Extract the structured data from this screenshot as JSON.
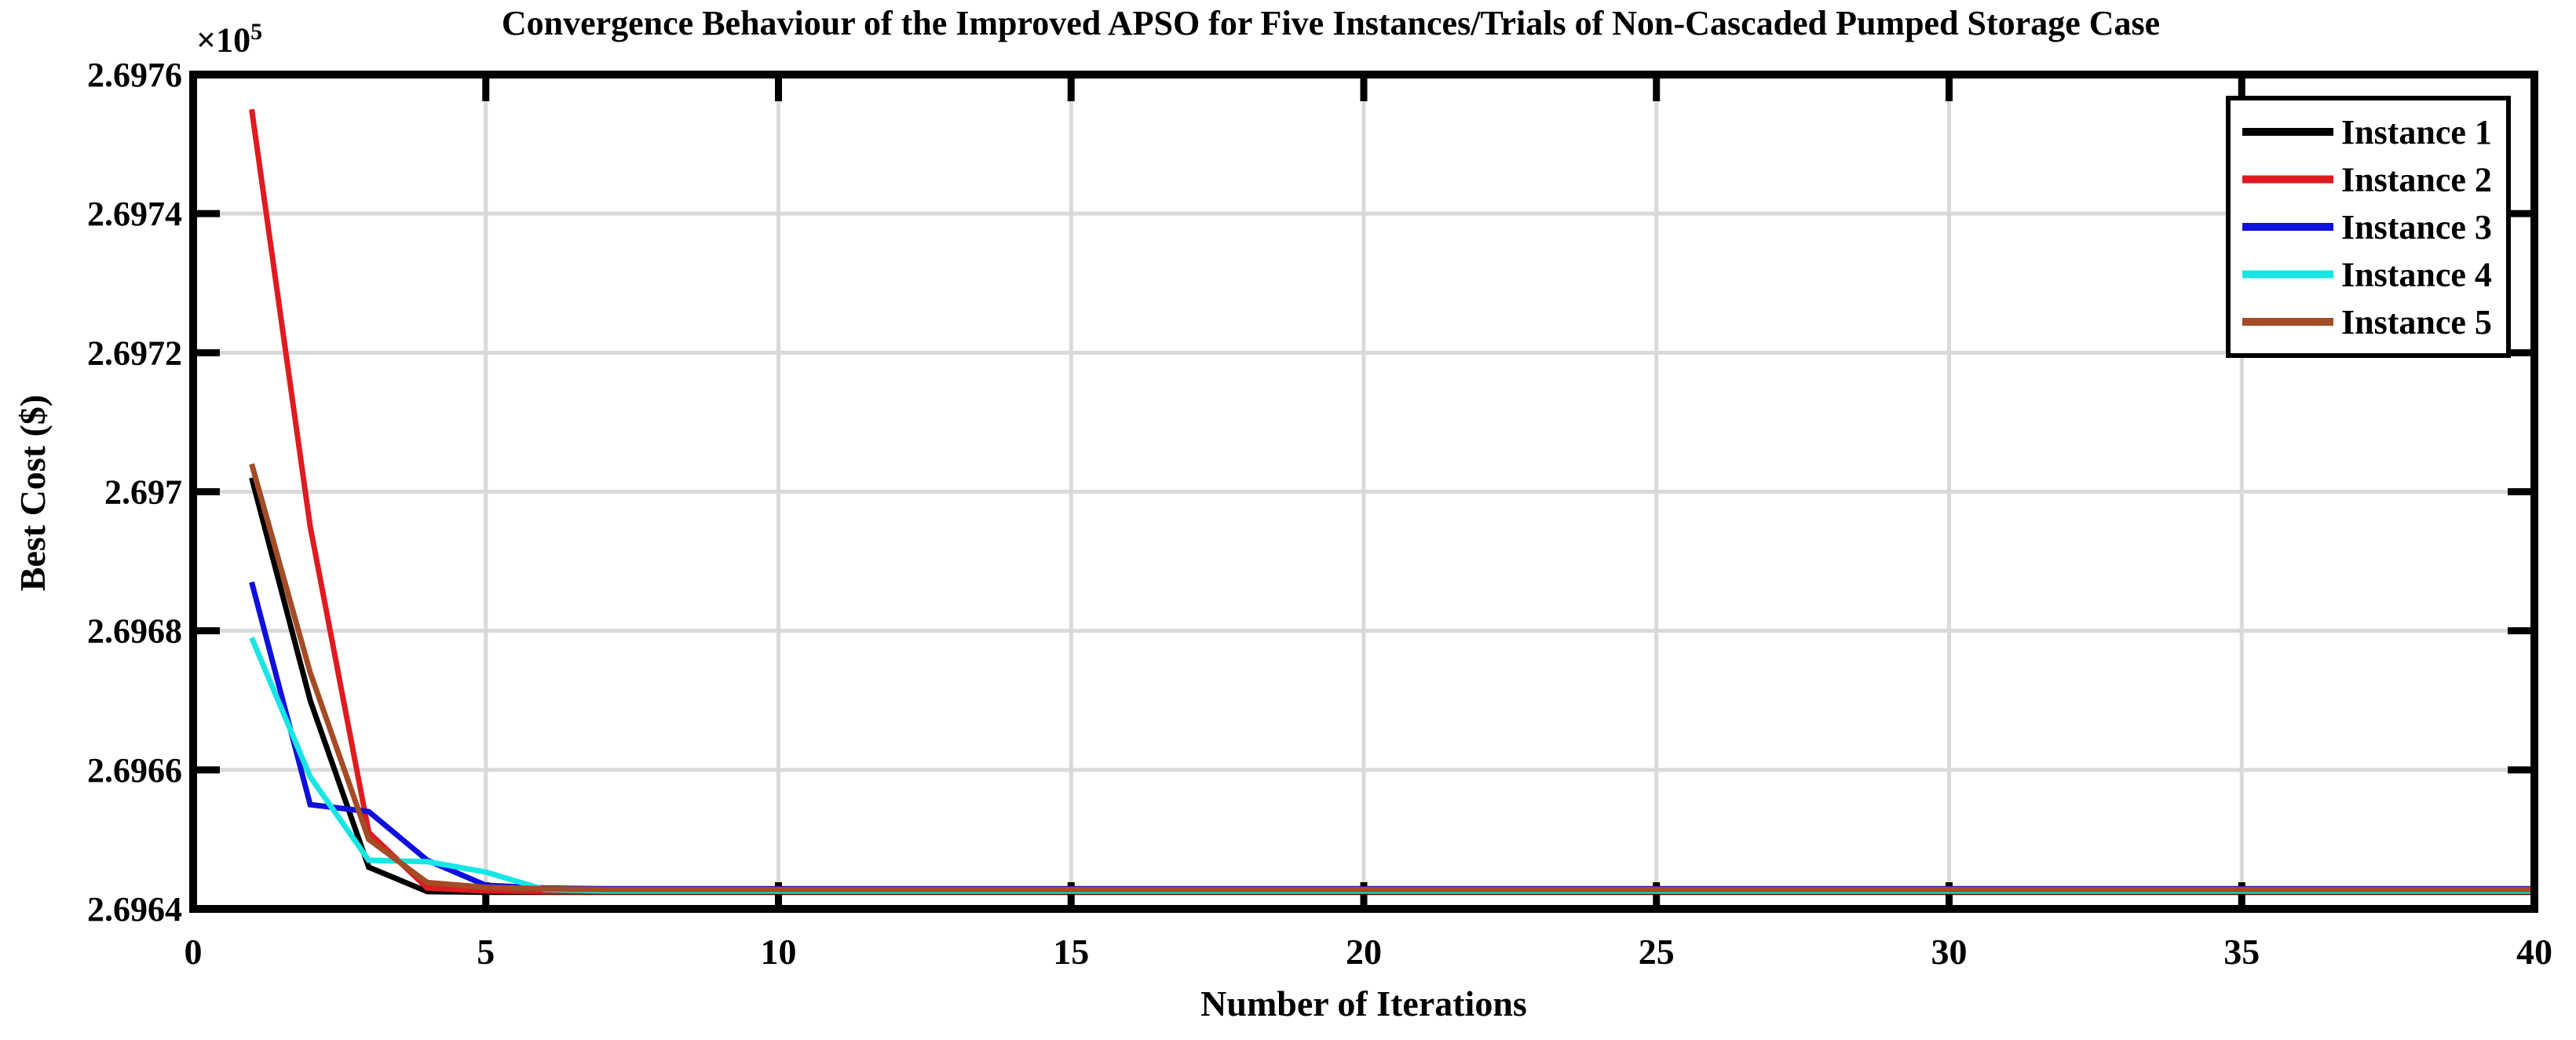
{
  "chart_data": {
    "type": "line",
    "title": "Convergence Behaviour of the Improved APSO for Five Instances/Trials of Non-Cascaded Pumped Storage Case",
    "xlabel": "Number of Iterations",
    "ylabel": "Best Cost ($)",
    "y_multiplier": {
      "base": "×10",
      "exponent": "5"
    },
    "xlim": [
      0,
      40
    ],
    "ylim": [
      269640,
      269760
    ],
    "x_start": 1,
    "grid": true,
    "legend_position": "top-right",
    "xticks": {
      "values": [
        0,
        5,
        10,
        15,
        20,
        25,
        30,
        35,
        40
      ],
      "labels": [
        "0",
        "5",
        "10",
        "15",
        "20",
        "25",
        "30",
        "35",
        "40"
      ]
    },
    "yticks": {
      "values": [
        269640,
        269660,
        269680,
        269700,
        269720,
        269740,
        269760
      ],
      "labels": [
        "2.6964",
        "2.6966",
        "2.6968",
        "2.697",
        "2.6972",
        "2.6974",
        "2.6976"
      ]
    },
    "styles": {
      "grid_color": "#d9d9d9",
      "axis_color": "#000000",
      "background": "#ffffff",
      "line_width": 7,
      "border_width": 10,
      "tick_len": 34,
      "tick_width": 9
    },
    "series": [
      {
        "name": "Instance 1",
        "color": "#000000",
        "values": [
          269702,
          269670,
          269646,
          269642.5,
          269642.4,
          269642.4,
          269642.4,
          269642.4,
          269642.4,
          269642.4,
          269642.4,
          269642.4,
          269642.4,
          269642.4,
          269642.4,
          269642.4,
          269642.4,
          269642.4,
          269642.4,
          269642.4,
          269642.4,
          269642.4,
          269642.4,
          269642.4,
          269642.4,
          269642.4,
          269642.4,
          269642.4,
          269642.4,
          269642.4,
          269642.4,
          269642.4,
          269642.4,
          269642.4,
          269642.4,
          269642.4,
          269642.4,
          269642.4,
          269642.4,
          269642.4
        ]
      },
      {
        "name": "Instance 2",
        "color": "#df1b21",
        "values": [
          269755,
          269695,
          269651,
          269643,
          269642.6,
          269642.5,
          269642.5,
          269642.5,
          269642.5,
          269642.5,
          269642.5,
          269642.5,
          269642.5,
          269642.5,
          269642.5,
          269642.5,
          269642.5,
          269642.5,
          269642.5,
          269642.5,
          269642.5,
          269642.5,
          269642.5,
          269642.5,
          269642.5,
          269642.5,
          269642.5,
          269642.5,
          269642.5,
          269642.5,
          269642.5,
          269642.5,
          269642.5,
          269642.5,
          269642.5,
          269642.5,
          269642.5,
          269642.5,
          269642.5,
          269642.5
        ]
      },
      {
        "name": "Instance 3",
        "color": "#0f10dc",
        "values": [
          269687,
          269655,
          269654,
          269647,
          269643.4,
          269643,
          269642.9,
          269642.9,
          269642.9,
          269642.9,
          269642.9,
          269642.9,
          269642.9,
          269642.9,
          269642.9,
          269642.9,
          269642.9,
          269642.9,
          269642.9,
          269642.9,
          269642.9,
          269642.9,
          269642.9,
          269642.9,
          269642.9,
          269642.9,
          269642.9,
          269642.9,
          269642.9,
          269642.9,
          269642.9,
          269642.9,
          269642.9,
          269642.9,
          269642.9,
          269642.9,
          269642.9,
          269642.9,
          269642.9,
          269642.9
        ]
      },
      {
        "name": "Instance 4",
        "color": "#19e5e5",
        "values": [
          269679,
          269659,
          269647,
          269646.8,
          269645.3,
          269642.8,
          269642.6,
          269642.6,
          269642.6,
          269642.6,
          269642.6,
          269642.6,
          269642.6,
          269642.6,
          269642.6,
          269642.6,
          269642.6,
          269642.6,
          269642.6,
          269642.6,
          269642.6,
          269642.6,
          269642.6,
          269642.6,
          269642.6,
          269642.6,
          269642.6,
          269642.6,
          269642.6,
          269642.6,
          269642.6,
          269642.6,
          269642.6,
          269642.6,
          269642.6,
          269642.6,
          269642.6,
          269642.6,
          269642.6,
          269642.6
        ]
      },
      {
        "name": "Instance 5",
        "color": "#a34c25",
        "values": [
          269704,
          269674,
          269650,
          269643.8,
          269643.1,
          269642.9,
          269642.8,
          269642.8,
          269642.8,
          269642.8,
          269642.8,
          269642.8,
          269642.8,
          269642.8,
          269642.8,
          269642.8,
          269642.8,
          269642.8,
          269642.8,
          269642.8,
          269642.8,
          269642.8,
          269642.8,
          269642.8,
          269642.8,
          269642.8,
          269642.8,
          269642.8,
          269642.8,
          269642.8,
          269642.8,
          269642.8,
          269642.8,
          269642.8,
          269642.8,
          269642.8,
          269642.8,
          269642.8,
          269642.8,
          269642.8
        ]
      }
    ]
  }
}
